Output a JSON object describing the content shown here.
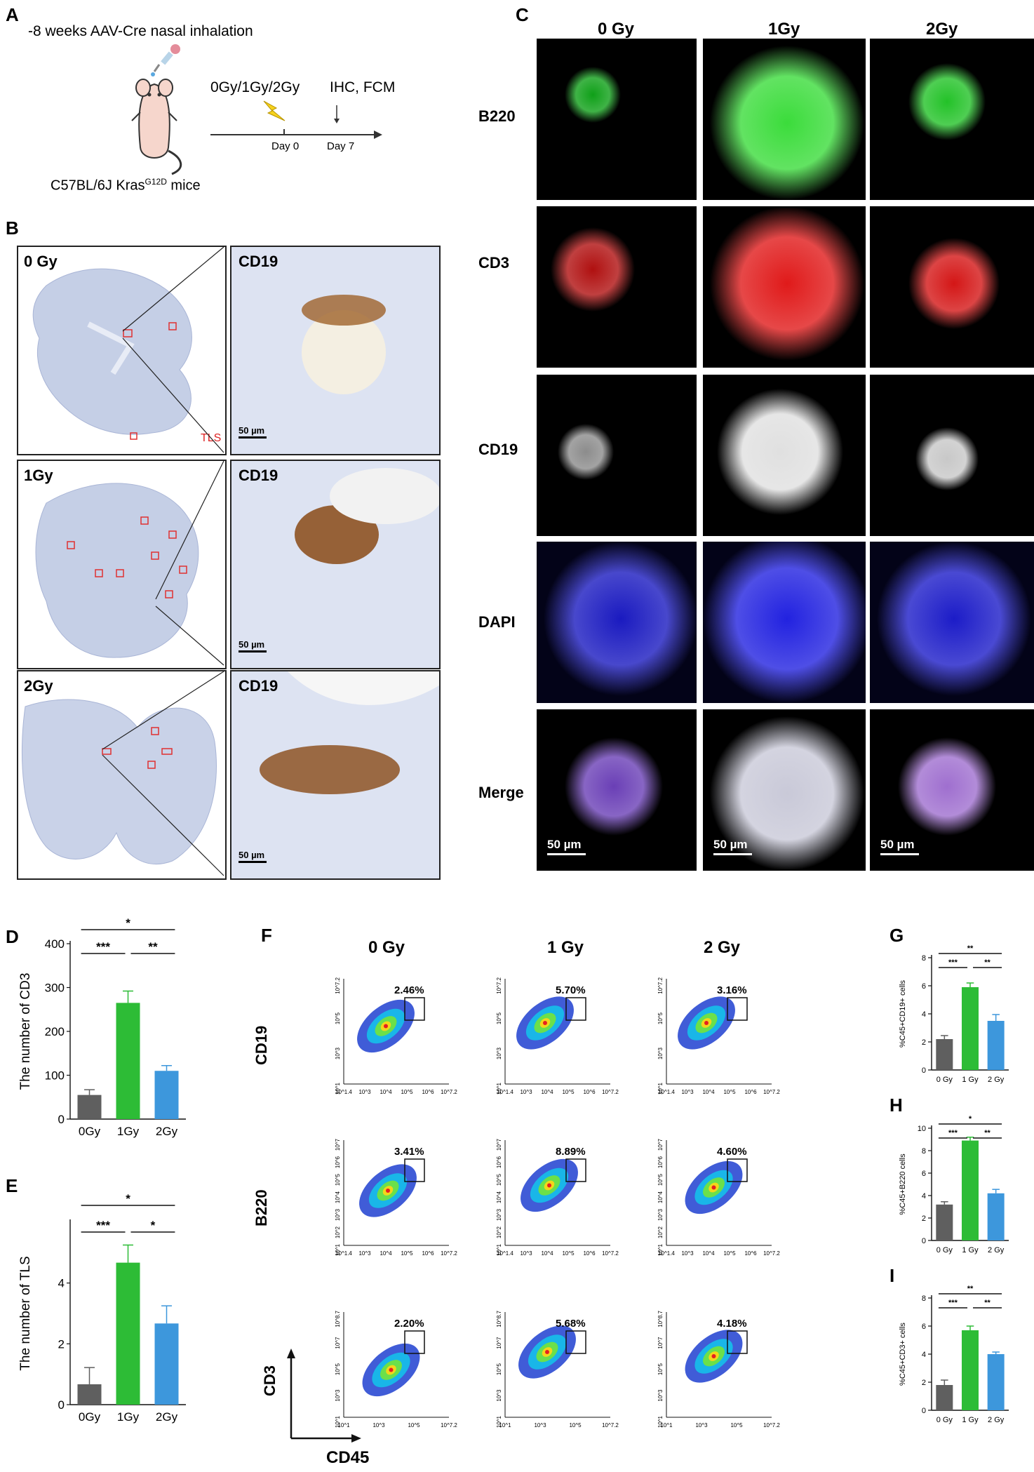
{
  "panel_labels": {
    "a": "A",
    "b": "B",
    "c": "C",
    "d": "D",
    "e": "E",
    "f": "F",
    "g": "G",
    "h": "H",
    "i": "I"
  },
  "panel_a": {
    "title": "-8 weeks AAV-Cre nasal inhalation",
    "treatment": "0Gy/1Gy/2Gy",
    "assay": "IHC, FCM",
    "day0": "Day 0",
    "day7": "Day 7",
    "mice_prefix": "C57BL/6J Kras",
    "mice_super": "G12D",
    "mice_suffix": " mice"
  },
  "panel_b": {
    "rows": [
      {
        "dose": "0 Gy",
        "stain": "CD19",
        "scale": "50 µm"
      },
      {
        "dose": "1Gy",
        "stain": "CD19",
        "scale": "50 µm"
      },
      {
        "dose": "2Gy",
        "stain": "CD19",
        "scale": "50 µm"
      }
    ],
    "legend": "TLS"
  },
  "panel_c": {
    "columns": [
      "0 Gy",
      "1Gy",
      "2Gy"
    ],
    "rows": [
      "B220",
      "CD3",
      "CD19",
      "DAPI",
      "Merge"
    ],
    "scale": "50 µm"
  },
  "panel_f": {
    "columns": [
      "0 Gy",
      "1 Gy",
      "2 Gy"
    ],
    "rows": [
      {
        "marker": "CD19",
        "gates": [
          "2.46%",
          "5.70%",
          "3.16%"
        ]
      },
      {
        "marker": "B220",
        "gates": [
          "3.41%",
          "8.89%",
          "4.60%"
        ]
      },
      {
        "marker": "CD3",
        "gates": [
          "2.20%",
          "5.68%",
          "4.18%"
        ]
      }
    ],
    "xaxis": "CD45"
  },
  "chart_data": [
    {
      "id": "D",
      "type": "bar",
      "categories": [
        "0Gy",
        "1Gy",
        "2Gy"
      ],
      "values": [
        55,
        265,
        110
      ],
      "errors": [
        12,
        27,
        12
      ],
      "ylabel": "The number of CD3",
      "ylim": [
        0,
        400
      ],
      "yticks": [
        0,
        100,
        200,
        300,
        400
      ],
      "colors": [
        "#5f5f5f",
        "#2dbc36",
        "#3d97dc"
      ],
      "sig": [
        {
          "a": 0,
          "b": 1,
          "label": "***"
        },
        {
          "a": 1,
          "b": 2,
          "label": "**"
        },
        {
          "a": 0,
          "b": 2,
          "label": "*"
        }
      ]
    },
    {
      "id": "E",
      "type": "bar",
      "categories": [
        "0Gy",
        "1Gy",
        "2Gy"
      ],
      "values": [
        0.67,
        4.67,
        2.67
      ],
      "errors": [
        0.55,
        0.58,
        0.58
      ],
      "ylabel": "The number of TLS",
      "ylim": [
        0,
        6
      ],
      "yticks": [
        0,
        2,
        4
      ],
      "colors": [
        "#5f5f5f",
        "#2dbc36",
        "#3d97dc"
      ],
      "sig": [
        {
          "a": 0,
          "b": 1,
          "label": "***"
        },
        {
          "a": 1,
          "b": 2,
          "label": "*"
        },
        {
          "a": 0,
          "b": 2,
          "label": "*"
        }
      ]
    },
    {
      "id": "G",
      "type": "bar",
      "categories": [
        "0 Gy",
        "1 Gy",
        "2 Gy"
      ],
      "values": [
        2.2,
        5.9,
        3.5
      ],
      "errors": [
        0.25,
        0.3,
        0.45
      ],
      "ylabel": "%C45+CD19+ cells",
      "ylim": [
        0,
        8
      ],
      "yticks": [
        0,
        2,
        4,
        6,
        8
      ],
      "colors": [
        "#5f5f5f",
        "#2dbc36",
        "#3d97dc"
      ],
      "sig": [
        {
          "a": 0,
          "b": 1,
          "label": "***"
        },
        {
          "a": 1,
          "b": 2,
          "label": "**"
        },
        {
          "a": 0,
          "b": 2,
          "label": "**"
        }
      ]
    },
    {
      "id": "H",
      "type": "bar",
      "categories": [
        "0 Gy",
        "1 Gy",
        "2 Gy"
      ],
      "values": [
        3.2,
        8.9,
        4.2
      ],
      "errors": [
        0.25,
        0.3,
        0.35
      ],
      "ylabel": "%C45+B220 cells",
      "ylim": [
        0,
        10
      ],
      "yticks": [
        0,
        2,
        4,
        6,
        8,
        10
      ],
      "colors": [
        "#5f5f5f",
        "#2dbc36",
        "#3d97dc"
      ],
      "sig": [
        {
          "a": 0,
          "b": 1,
          "label": "***"
        },
        {
          "a": 1,
          "b": 2,
          "label": "**"
        },
        {
          "a": 0,
          "b": 2,
          "label": "*"
        }
      ]
    },
    {
      "id": "I",
      "type": "bar",
      "categories": [
        "0 Gy",
        "1 Gy",
        "2 Gy"
      ],
      "values": [
        1.8,
        5.7,
        4.0
      ],
      "errors": [
        0.35,
        0.3,
        0.15
      ],
      "ylabel": "%C45+CD3+ cells",
      "ylim": [
        0,
        8
      ],
      "yticks": [
        0,
        2,
        4,
        6,
        8
      ],
      "colors": [
        "#5f5f5f",
        "#2dbc36",
        "#3d97dc"
      ],
      "sig": [
        {
          "a": 0,
          "b": 1,
          "label": "***"
        },
        {
          "a": 1,
          "b": 2,
          "label": "**"
        },
        {
          "a": 0,
          "b": 2,
          "label": "**"
        }
      ]
    }
  ],
  "flow_axes": {
    "cd19_y": [
      "10^1",
      "10^3",
      "10^5",
      "10^7.2"
    ],
    "cd19_x": [
      "10^1.4",
      "10^3",
      "10^4",
      "10^5",
      "10^6",
      "10^7.2"
    ],
    "b220_y": [
      "10^1",
      "10^2",
      "10^3",
      "10^4",
      "10^5",
      "10^6",
      "10^7"
    ],
    "b220_x": [
      "10^1.4",
      "10^3",
      "10^4",
      "10^5",
      "10^6",
      "10^7.2"
    ],
    "cd3_y": [
      "10^1",
      "10^3",
      "10^5",
      "10^7",
      "10^8.7"
    ],
    "cd3_x": [
      "10^1",
      "10^3",
      "10^5",
      "10^7.2"
    ]
  }
}
